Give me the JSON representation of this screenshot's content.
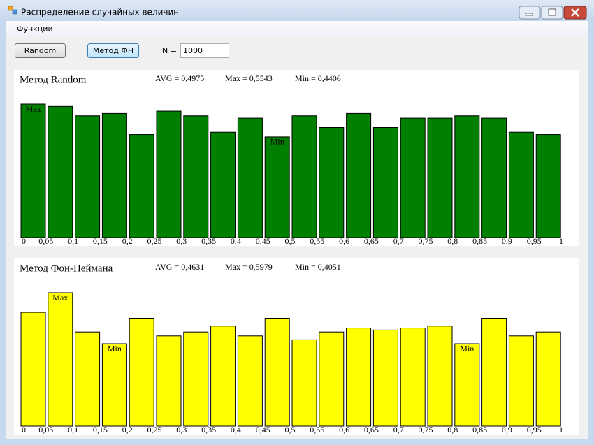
{
  "window": {
    "title": "Распределение случайных величин"
  },
  "menu": [
    "Функции"
  ],
  "toolbar": {
    "buttons": [
      "Random",
      "Метод ФН"
    ],
    "n_label": "N =",
    "n_value": "1000"
  },
  "chart_data": [
    {
      "type": "bar",
      "title": "Метод Random",
      "stats": [
        "AVG = 0,4975",
        "Max = 0,5543",
        "Min = 0,4406"
      ],
      "color": "#008000",
      "values": [
        57,
        56,
        52,
        53,
        44,
        54,
        52,
        45,
        51,
        43,
        52,
        47,
        53,
        47,
        51,
        51,
        52,
        51,
        45,
        44
      ],
      "bar_labels": [
        "Max",
        null,
        null,
        null,
        null,
        null,
        null,
        null,
        null,
        "Min",
        null,
        null,
        null,
        null,
        null,
        null,
        null,
        null,
        null,
        null
      ],
      "xtick_labels": [
        "0",
        "0,05",
        "0,1",
        "0,15",
        "0,2",
        "0,25",
        "0,3",
        "0,35",
        "0,4",
        "0,45",
        "0,5",
        "0,55",
        "0,6",
        "0,65",
        "0,7",
        "0,75",
        "0,8",
        "0,85",
        "0,9",
        "0,95",
        "1"
      ]
    },
    {
      "type": "bar",
      "title": "Метод Фон-Неймана",
      "stats": [
        "AVG = 0,4631",
        "Max = 0,5979",
        "Min = 0,4051"
      ],
      "color": "#ffff00",
      "values": [
        58,
        68,
        48,
        42,
        55,
        46,
        48,
        51,
        46,
        55,
        44,
        48,
        50,
        49,
        50,
        51,
        42,
        55,
        46,
        48
      ],
      "bar_labels": [
        null,
        "Max",
        null,
        "Min",
        null,
        null,
        null,
        null,
        null,
        null,
        null,
        null,
        null,
        null,
        null,
        null,
        "Min",
        null,
        null,
        null
      ],
      "xtick_labels": [
        "0",
        "0,05",
        "0,1",
        "0,15",
        "0,2",
        "0,25",
        "0,3",
        "0,35",
        "0,4",
        "0,45",
        "0,5",
        "0,55",
        "0,6",
        "0,65",
        "0,7",
        "0,75",
        "0,8",
        "0,85",
        "0,9",
        "0,95",
        "1"
      ]
    }
  ]
}
